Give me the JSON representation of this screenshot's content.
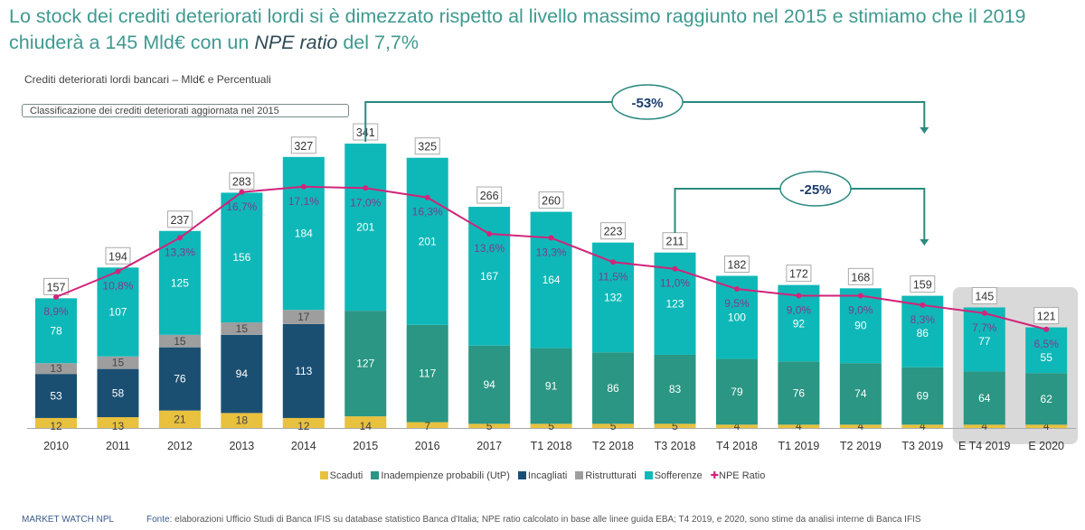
{
  "title": {
    "line1": "Lo stock dei crediti deteriorati lordi si è dimezzato rispetto al livello massimo raggiunto nel 2015 e stimiamo che il 2019",
    "line2_a": "chiuderà a 145 Mld€ con un ",
    "line2_italic": "NPE ratio",
    "line2_b": " del 7,7%"
  },
  "subtitle": "Crediti deteriorati lordi bancari  – Mld€ e Percentuali",
  "note": "Classificazione dei crediti deteriorati aggiornata nel 2015",
  "annotations": [
    {
      "label": "-53%",
      "from": "2015",
      "to": "T3 2019"
    },
    {
      "label": "-25%",
      "from": "T3 2018",
      "to": "T3 2019"
    }
  ],
  "colors": {
    "Scaduti": "#e8c13e",
    "Inadempienze probabili (UtP)": "#2a9683",
    "Incagliati": "#1b4f72",
    "Ristrutturati": "#9e9e9e",
    "Sofferenze": "#0fb8b8",
    "NPE Ratio": "#d1247a",
    "title": "#3f9a90",
    "estimate_box": "#d9d9d9"
  },
  "chart_data": {
    "type": "bar",
    "stacked": true,
    "categories": [
      "2010",
      "2011",
      "2012",
      "2013",
      "2014",
      "2015",
      "2016",
      "2017",
      "T1 2018",
      "T2 2018",
      "T3 2018",
      "T4 2018",
      "T1 2019",
      "T2 2019",
      "T3 2019",
      "E T4 2019",
      "E 2020"
    ],
    "series": [
      {
        "name": "Scaduti",
        "values": [
          12,
          13,
          21,
          18,
          12,
          14,
          7,
          5,
          5,
          5,
          5,
          4,
          4,
          4,
          4,
          4,
          4
        ]
      },
      {
        "name": "Inadempienze probabili (UtP)",
        "values": [
          null,
          null,
          null,
          null,
          null,
          127,
          117,
          94,
          91,
          86,
          83,
          79,
          76,
          74,
          69,
          64,
          62
        ]
      },
      {
        "name": "Incagliati",
        "values": [
          53,
          58,
          76,
          94,
          113,
          null,
          null,
          null,
          null,
          null,
          null,
          null,
          null,
          null,
          null,
          null,
          null
        ]
      },
      {
        "name": "Ristrutturati",
        "values": [
          13,
          15,
          15,
          15,
          17,
          null,
          null,
          null,
          null,
          null,
          null,
          null,
          null,
          null,
          null,
          null,
          null
        ]
      },
      {
        "name": "Sofferenze",
        "values": [
          78,
          107,
          125,
          156,
          184,
          201,
          201,
          167,
          164,
          132,
          123,
          100,
          92,
          90,
          86,
          77,
          55
        ]
      }
    ],
    "totals": [
      157,
      194,
      237,
      283,
      327,
      341,
      325,
      266,
      260,
      223,
      211,
      182,
      172,
      168,
      159,
      145,
      121
    ],
    "line_series": {
      "name": "NPE Ratio",
      "values": [
        "8,9%",
        "10,8%",
        "13,3%",
        "16,7%",
        "17,1%",
        "17,0%",
        "16,3%",
        "13,6%",
        "13,3%",
        "11,5%",
        "11,0%",
        "9,5%",
        "9,0%",
        "9,0%",
        "8,3%",
        "7,7%",
        "6,5%"
      ],
      "numeric": [
        8.9,
        10.8,
        13.3,
        16.7,
        17.1,
        17.0,
        16.3,
        13.6,
        13.3,
        11.5,
        11.0,
        9.5,
        9.0,
        9.0,
        8.3,
        7.7,
        6.5
      ]
    },
    "estimates": [
      "E T4 2019",
      "E 2020"
    ],
    "ylim": [
      0,
      341
    ],
    "grid": false,
    "legend": "bottom"
  },
  "footer": {
    "brand": "MARKET WATCH NPL",
    "source_label": "Fonte:",
    "source_text": " elaborazioni Ufficio Studi di Banca IFIS su database statistico Banca d'Italia; NPE ratio calcolato in base alle linee guida EBA; T4 2019, e 2020, sono stime da analisi interne di Banca IFIS"
  }
}
